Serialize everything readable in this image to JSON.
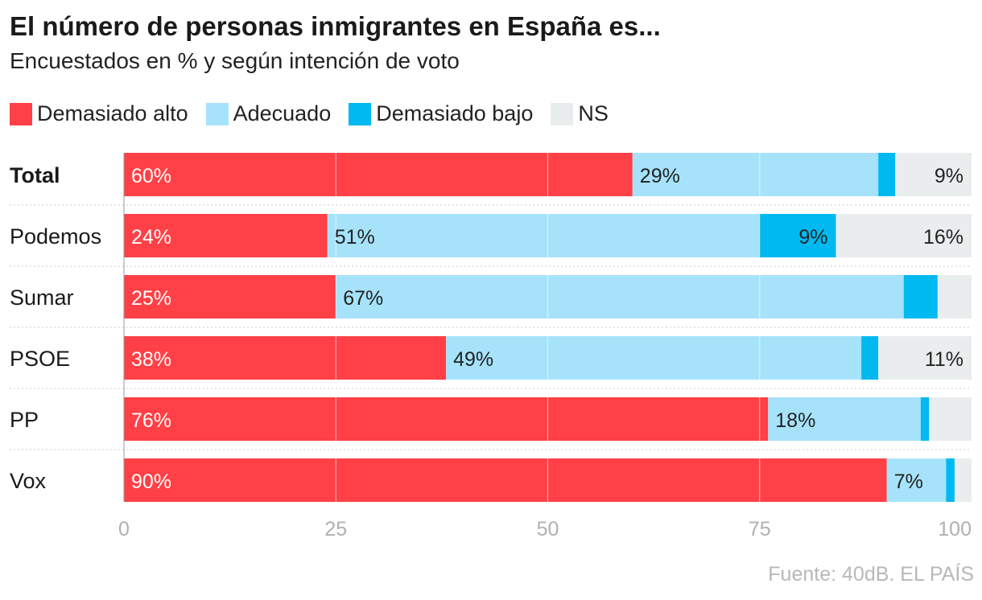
{
  "header": {
    "title": "El número de personas inmigrantes en España es...",
    "subtitle": "Encuestados en % y según intención de voto"
  },
  "source": "Fuente: 40dB. EL PAÍS",
  "chart_data": {
    "type": "bar",
    "orientation": "horizontal",
    "stacked": true,
    "title": "El número de personas inmigrantes en España es...",
    "subtitle": "Encuestados en % y según intención de voto",
    "categories": [
      "Total",
      "Podemos",
      "Sumar",
      "PSOE",
      "PP",
      "Vox"
    ],
    "bold_categories": [
      "Total"
    ],
    "xlim": [
      0,
      100
    ],
    "xticks": [
      0,
      25,
      50,
      75,
      100
    ],
    "grid": true,
    "legend_position": "top-left",
    "series": [
      {
        "name": "Demasiado alto",
        "color": "#ff4046",
        "values": [
          60,
          24,
          25,
          38,
          76,
          90
        ],
        "labels": [
          "60%",
          "24%",
          "25%",
          "38%",
          "76%",
          "90%"
        ]
      },
      {
        "name": "Adecuado",
        "color": "#a6e3fa",
        "values": [
          29,
          51,
          67,
          49,
          18,
          7
        ],
        "labels": [
          "29%",
          "51%",
          "67%",
          "49%",
          "18%",
          "7%"
        ]
      },
      {
        "name": "Demasiado bajo",
        "color": "#00b9f0",
        "values": [
          2,
          9,
          4,
          2,
          1,
          1
        ],
        "labels": [
          "",
          "9%",
          "",
          "",
          "",
          ""
        ]
      },
      {
        "name": "NS",
        "color": "#e9edee",
        "values": [
          9,
          16,
          4,
          11,
          5,
          2
        ],
        "labels": [
          "9%",
          "16%",
          "",
          "11%",
          "",
          ""
        ]
      }
    ]
  }
}
